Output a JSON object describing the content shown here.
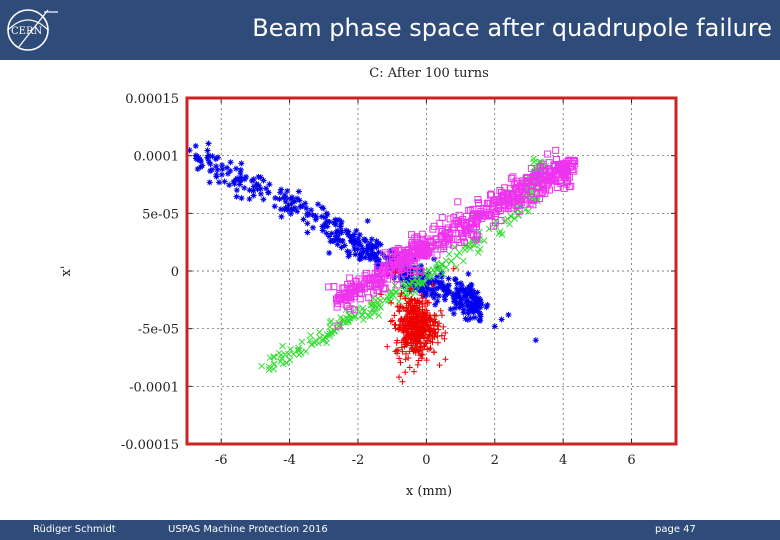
{
  "header": {
    "title": "Beam phase space after quadrupole failure",
    "logo_text": "CERN",
    "background": "#2e4b7a"
  },
  "footer": {
    "author": "Rüdiger Schmidt",
    "event": "USPAS Machine Protection 2016",
    "page": "page 47"
  },
  "chart_data": {
    "type": "scatter",
    "title": "C: After 100 turns",
    "xlabel": "x (mm)",
    "ylabel": "x'",
    "xlim": [
      -7,
      7.3
    ],
    "ylim": [
      -0.00015,
      0.00015
    ],
    "x_ticks": [
      -6,
      -4,
      -2,
      0,
      2,
      4,
      6
    ],
    "y_ticks": [
      0.00015,
      0.0001,
      5e-05,
      0,
      -5e-05,
      -0.0001,
      -0.00015
    ],
    "y_tick_labels": [
      "0.00015",
      "0.0001",
      "5e-05",
      "0",
      "-5e-05",
      "-0.0001",
      "-0.00015"
    ],
    "x_tick_labels": [
      "-6",
      "-4",
      "-2",
      "0",
      "2",
      "4",
      "6"
    ],
    "grid": true,
    "frame_color": "#cc2222",
    "series": [
      {
        "name": "blue",
        "color": "#0000ee",
        "marker": "asterisk",
        "centerline": [
          [
            -6.9,
            0.0001
          ],
          [
            -5,
            7.5e-05
          ],
          [
            -3,
            4.2e-05
          ],
          [
            -2,
            2.2e-05
          ],
          [
            -1,
            5e-06
          ],
          [
            0,
            -1e-05
          ],
          [
            1.0,
            -2.2e-05
          ],
          [
            1.6,
            -3.2e-05
          ]
        ],
        "spread": 7e-06,
        "count": 520,
        "outliers": [
          [
            2.2,
            -4.2e-05
          ],
          [
            2.4,
            -3.8e-05
          ],
          [
            3.2,
            -6e-05
          ],
          [
            2.0,
            -4.8e-05
          ]
        ]
      },
      {
        "name": "green",
        "color": "#33dd33",
        "marker": "cross",
        "centerline": [
          [
            -4.8,
            -8.5e-05
          ],
          [
            -3,
            -5.5e-05
          ],
          [
            -1.5,
            -3e-05
          ],
          [
            0,
            -5e-06
          ],
          [
            1.5,
            2.5e-05
          ],
          [
            3,
            6e-05
          ],
          [
            3.3,
            9.6e-05
          ]
        ],
        "spread": 4e-06,
        "count": 260,
        "outliers": []
      },
      {
        "name": "magenta",
        "color": "#ee33ee",
        "marker": "square",
        "centerline": [
          [
            -2.6,
            -2.5e-05
          ],
          [
            -1.5,
            -8e-06
          ],
          [
            -0.5,
            1.2e-05
          ],
          [
            0.5,
            2.8e-05
          ],
          [
            1.5,
            4.6e-05
          ],
          [
            2.5,
            6.5e-05
          ],
          [
            3.5,
            8.2e-05
          ],
          [
            4.3,
            9e-05
          ]
        ],
        "spread": 6.5e-06,
        "count": 640,
        "outliers": []
      },
      {
        "name": "red",
        "color": "#ee0000",
        "marker": "plus",
        "center": [
          -0.3,
          -4.8e-05
        ],
        "xy_spread": [
          0.55,
          2.2e-05
        ],
        "count": 420,
        "outliers": [
          [
            -0.8,
            -9.2e-05
          ],
          [
            -0.7,
            -9.6e-05
          ],
          [
            0.8,
            2e-06
          ]
        ]
      }
    ]
  }
}
